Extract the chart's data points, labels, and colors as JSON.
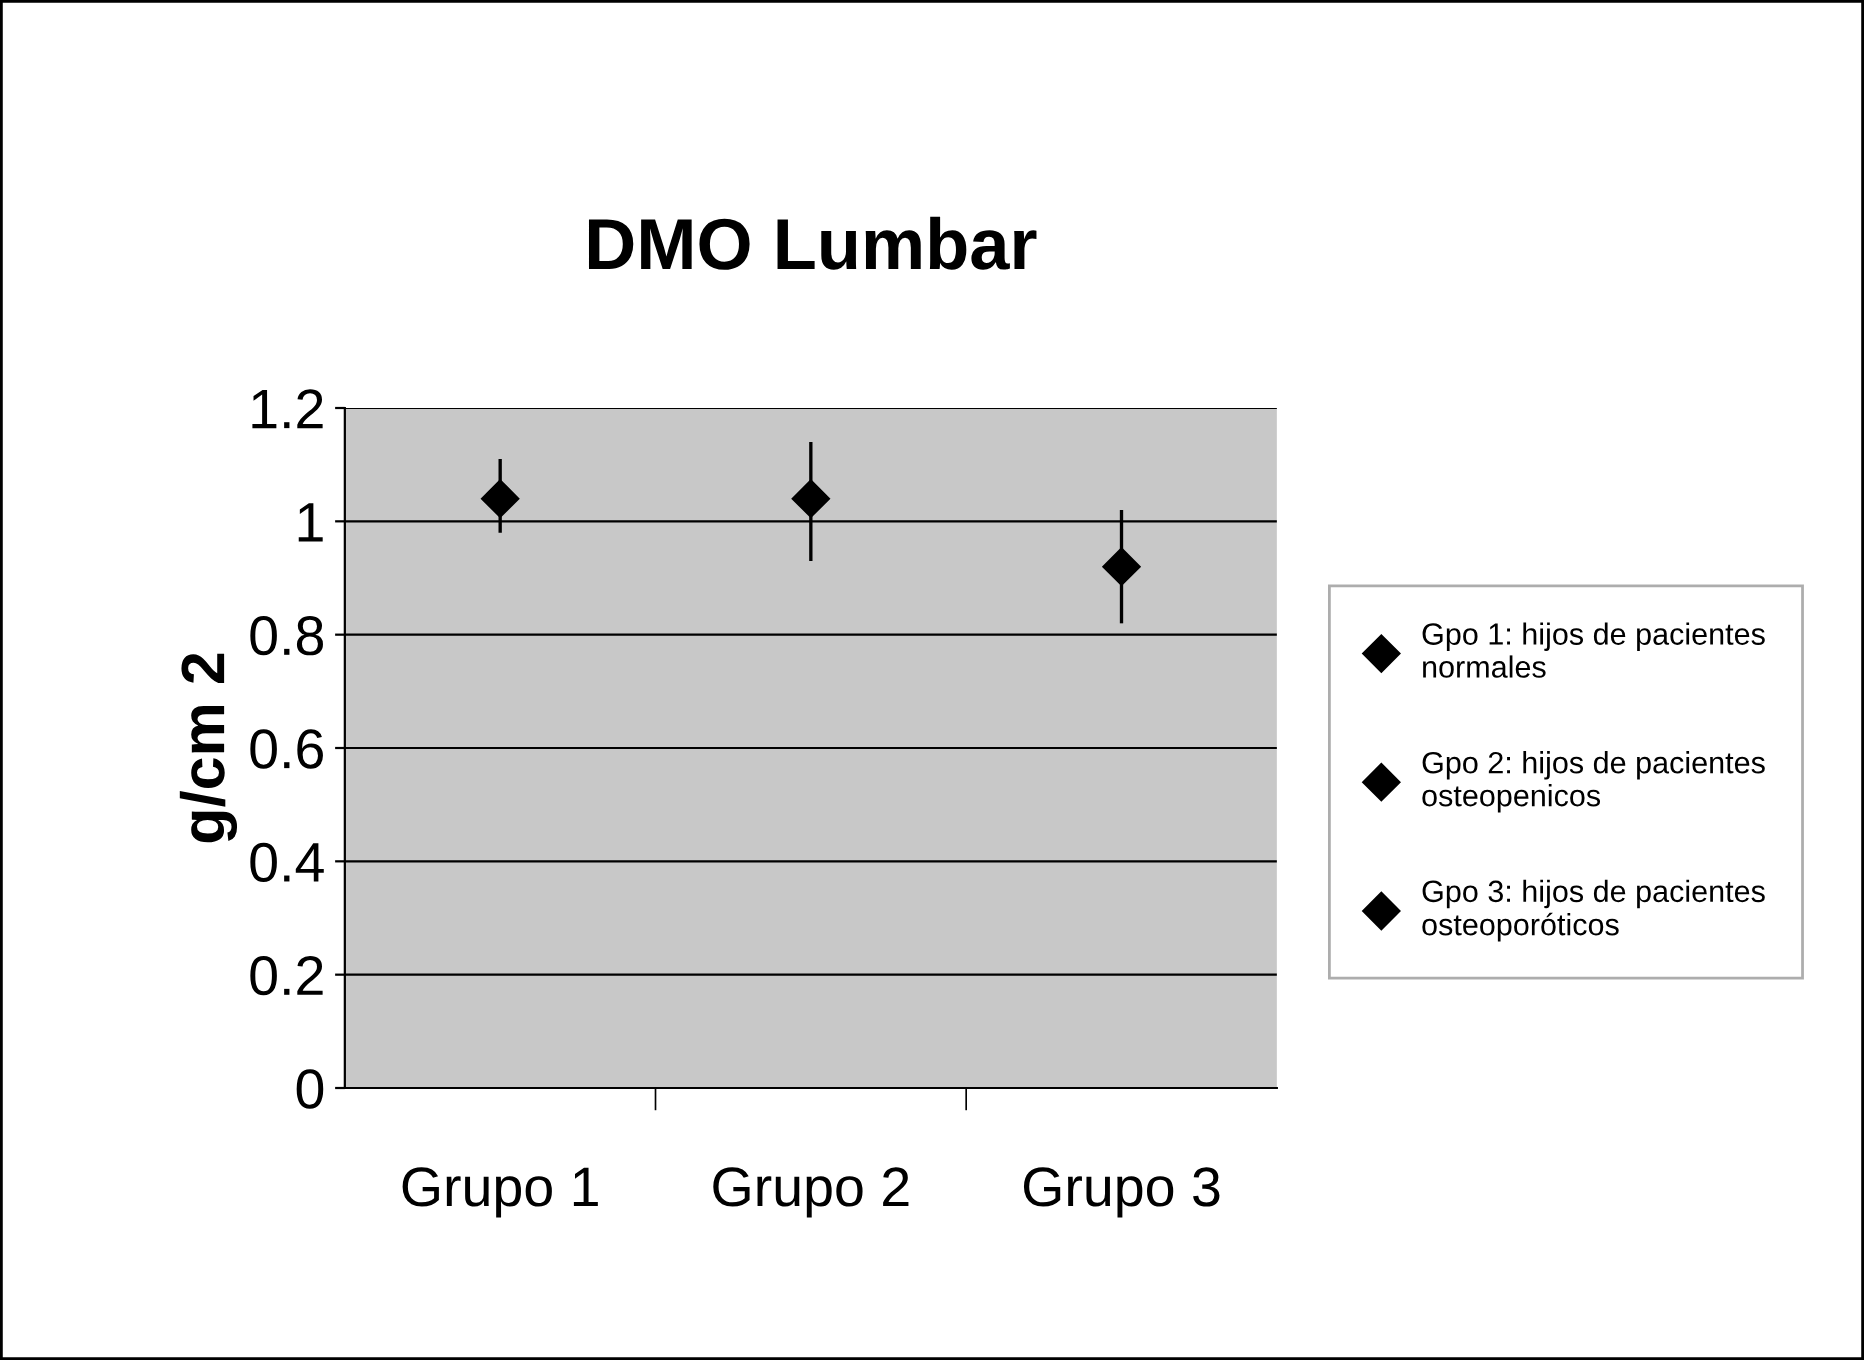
{
  "chart_data": {
    "type": "scatter",
    "title": "DMO Lumbar",
    "ylabel": "g/cm 2",
    "categories": [
      "Grupo 1",
      "Grupo 2",
      "Grupo 3"
    ],
    "series": [
      {
        "name": "Gpo 1: hijos de pacientes normales",
        "color": "#000000",
        "values": [
          1.04,
          null,
          null
        ],
        "errors": [
          [
            0.98,
            1.11
          ],
          null,
          null
        ]
      },
      {
        "name": "Gpo 2: hijos de pacientes osteopenicos",
        "color": "#000000",
        "values": [
          null,
          1.04,
          null
        ],
        "errors": [
          null,
          [
            0.93,
            1.14
          ],
          null
        ]
      },
      {
        "name": "Gpo 3: hijos de pacientes osteoporóticos",
        "color": "#000000",
        "values": [
          null,
          null,
          0.92
        ],
        "errors": [
          null,
          null,
          [
            0.82,
            1.02
          ]
        ]
      }
    ],
    "ylim": [
      0,
      1.2
    ],
    "yticks": [
      0,
      0.2,
      0.4,
      0.6,
      0.8,
      1,
      1.2
    ],
    "grid": "y",
    "legend": "right",
    "marker": "diamond"
  }
}
